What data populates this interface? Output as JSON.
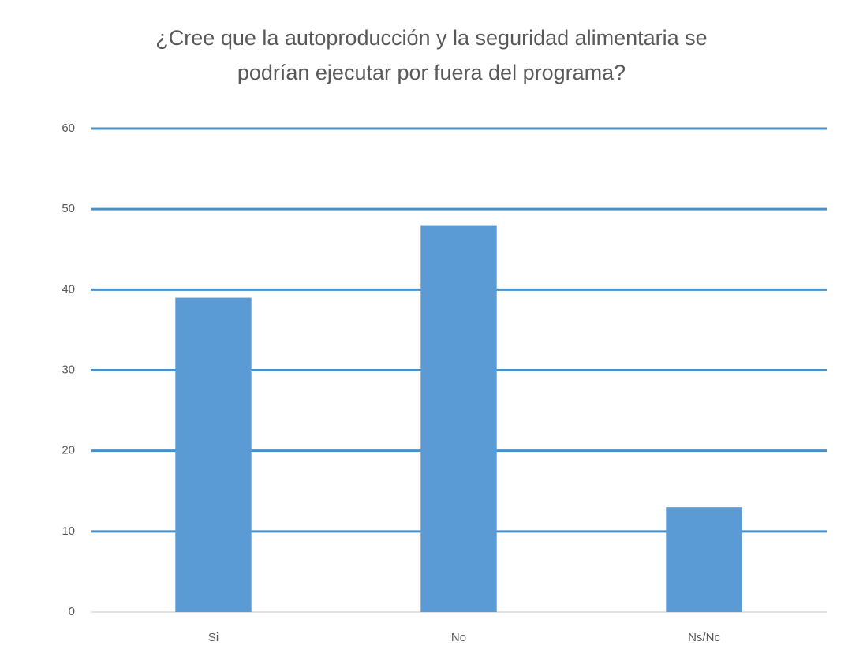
{
  "chart_data": {
    "type": "bar",
    "title": "¿Cree que la autoproducción y la seguridad alimentaria se\npodrían ejecutar por fuera del programa?",
    "categories": [
      "Si",
      "No",
      "Ns/Nc"
    ],
    "values": [
      39,
      48,
      13
    ],
    "color": "#5b9bd5",
    "ylim": [
      0,
      60
    ],
    "yticks": [
      0,
      10,
      20,
      30,
      40,
      50,
      60
    ],
    "grid": true
  }
}
